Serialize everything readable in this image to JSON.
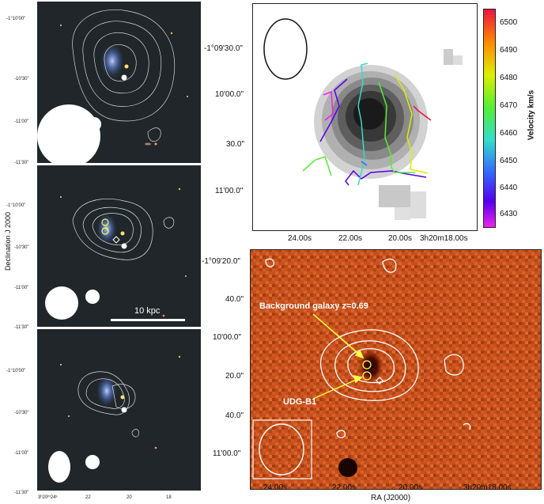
{
  "left_panels": {
    "ylabel": "Declination J 2000",
    "top_yticks": [
      "-1°10'00\"",
      "-10'30\"",
      "-11'00\"",
      "-11'30\""
    ],
    "mid_yticks": [
      "-1°10'00\"",
      "-10'30\"",
      "-11'00\"",
      "-11'30\""
    ],
    "bot_yticks": [
      "-1°10'00\"",
      "-10'30\"",
      "-11'00\"",
      "-11'30\""
    ],
    "bot_xticks": [
      "3ʰ20ᵐ24ˢ",
      "22",
      "20",
      "18"
    ],
    "scale_bar_label": "10 kpc"
  },
  "velocity_panel": {
    "yticks": [
      "-1°09'30.0\"",
      "10'00.0\"",
      "30.0\"",
      "11'00.0\""
    ],
    "xticks": [
      "24.00s",
      "22.00s",
      "20.00s",
      "3h20m18.00s"
    ],
    "colorbar": {
      "label": "Velocity km/s",
      "ticks": [
        "6500",
        "6490",
        "6480",
        "6470",
        "6460",
        "6450",
        "6440",
        "6430"
      ],
      "colors": [
        "#ee1144",
        "#ff8800",
        "#ddee00",
        "#55ee33",
        "#33ddcc",
        "#3366ff",
        "#5500ee",
        "#ee22ee"
      ]
    }
  },
  "image_panel": {
    "yticks": [
      "-1°09'20.0\"",
      "40.0\"",
      "10'00.0\"",
      "20.0\"",
      "40.0\"",
      "11'00.0\""
    ],
    "xticks": [
      "24.00s",
      "22.00s",
      "20.00s",
      "3h20m18.00s"
    ],
    "xlabel": "RA (J2000)",
    "annotations": {
      "background": "Background galaxy z=0.69",
      "udg": "UDG-B1"
    }
  }
}
